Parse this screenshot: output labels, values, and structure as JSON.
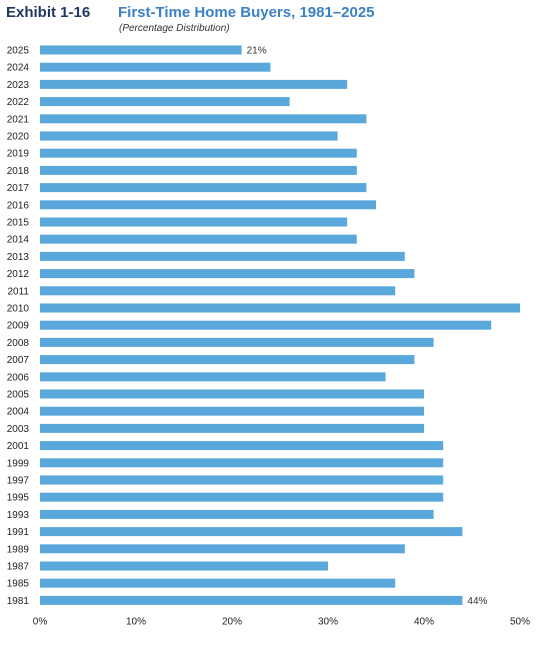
{
  "header": {
    "exhibit": "Exhibit 1-16",
    "title": "First-Time Home Buyers, 1981–2025",
    "subtitle": "(Percentage Distribution)"
  },
  "chart_data": {
    "type": "bar",
    "orientation": "horizontal",
    "title": "First-Time Home Buyers, 1981–2025",
    "subtitle": "(Percentage Distribution)",
    "categories": [
      "2025",
      "2024",
      "2023",
      "2022",
      "2021",
      "2020",
      "2019",
      "2018",
      "2017",
      "2016",
      "2015",
      "2014",
      "2013",
      "2012",
      "2011",
      "2010",
      "2009",
      "2008",
      "2007",
      "2006",
      "2005",
      "2004",
      "2003",
      "2001",
      "1999",
      "1997",
      "1995",
      "1993",
      "1991",
      "1989",
      "1987",
      "1985",
      "1981"
    ],
    "values": [
      21,
      24,
      32,
      26,
      34,
      31,
      33,
      33,
      34,
      35,
      32,
      33,
      38,
      39,
      37,
      50,
      47,
      41,
      39,
      36,
      40,
      40,
      40,
      42,
      42,
      42,
      42,
      41,
      44,
      38,
      30,
      37,
      44
    ],
    "data_labels": {
      "2025": "21%",
      "1981": "44%"
    },
    "xlim": [
      0,
      50
    ],
    "xticks": [
      "0%",
      "10%",
      "20%",
      "30%",
      "40%",
      "50%"
    ],
    "grid": false,
    "legend": "none",
    "bar_color": "#5aa7dc"
  }
}
